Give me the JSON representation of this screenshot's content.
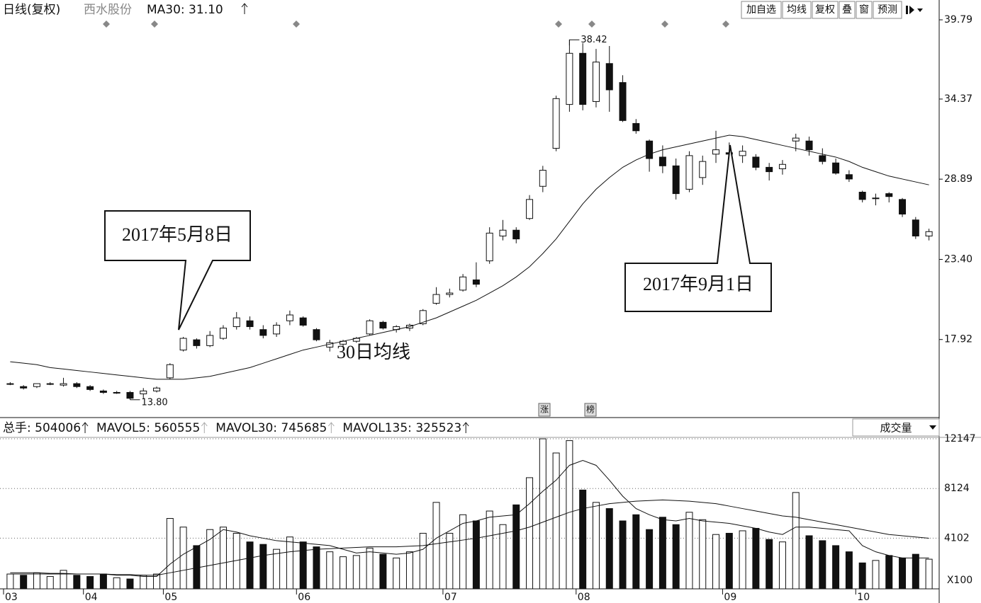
{
  "toolbar": [
    "加自选",
    "均线",
    "复权",
    "叠",
    "窗",
    "预测"
  ],
  "chart_data": [
    {
      "type": "candlestick",
      "title": "日线(复权)",
      "stock": "西水股份",
      "indicator": "MA30: 31.10",
      "categories": [
        "03",
        null,
        null,
        null,
        null,
        null,
        "04",
        null,
        null,
        null,
        null,
        null,
        "05",
        null,
        null,
        null,
        null,
        null,
        null,
        null,
        null,
        null,
        "06",
        null,
        null,
        null,
        null,
        null,
        null,
        null,
        null,
        null,
        null,
        "07",
        null,
        null,
        null,
        null,
        null,
        null,
        null,
        null,
        null,
        "08",
        null,
        null,
        null,
        null,
        null,
        null,
        null,
        null,
        null,
        null,
        "09",
        null,
        null,
        null,
        null,
        null,
        null,
        null,
        null,
        null,
        "10",
        null,
        null,
        null,
        null,
        null
      ],
      "open": [
        14.9,
        14.7,
        14.7,
        14.9,
        14.8,
        14.9,
        14.7,
        14.4,
        14.3,
        14.3,
        14.2,
        14.4,
        15.3,
        17.2,
        17.9,
        17.5,
        18.0,
        18.8,
        19.2,
        18.6,
        18.3,
        19.2,
        19.4,
        18.6,
        17.4,
        17.6,
        17.8,
        18.3,
        19.1,
        18.6,
        18.7,
        19.0,
        20.4,
        21.0,
        21.3,
        22.0,
        23.3,
        25.0,
        25.4,
        26.2,
        28.4,
        31.0,
        34.0,
        37.5,
        34.2,
        36.8,
        35.5,
        32.7,
        31.5,
        30.4,
        29.8,
        28.2,
        29.0,
        30.6,
        30.7,
        30.5,
        30.4,
        29.7,
        29.6,
        31.5,
        31.5,
        30.5,
        30.0,
        29.2,
        28.0,
        27.6,
        27.9,
        27.5,
        26.1,
        25.0
      ],
      "high": [
        15.0,
        14.8,
        14.9,
        15.0,
        15.3,
        15.0,
        14.8,
        14.5,
        14.4,
        14.4,
        14.6,
        14.7,
        16.3,
        18.1,
        18.0,
        18.5,
        18.9,
        19.8,
        19.5,
        18.9,
        19.1,
        19.9,
        19.5,
        18.7,
        17.9,
        17.9,
        18.1,
        19.3,
        19.2,
        18.9,
        19.0,
        20.0,
        21.5,
        21.4,
        22.4,
        23.2,
        25.6,
        26.1,
        25.6,
        27.8,
        29.8,
        34.6,
        38.42,
        38.2,
        37.8,
        38.0,
        36.0,
        33.0,
        31.6,
        31.2,
        30.3,
        30.8,
        30.5,
        32.2,
        31.4,
        31.2,
        30.6,
        30.0,
        30.2,
        32.0,
        31.8,
        31.0,
        30.3,
        29.5,
        28.1,
        27.9,
        28.0,
        27.6,
        26.3,
        25.5
      ],
      "low": [
        14.8,
        14.5,
        14.6,
        14.8,
        14.7,
        14.6,
        14.4,
        14.2,
        14.2,
        13.8,
        13.9,
        14.3,
        15.2,
        17.1,
        17.3,
        17.4,
        17.9,
        18.6,
        18.6,
        18.0,
        18.1,
        18.9,
        18.8,
        17.8,
        17.1,
        17.4,
        17.7,
        18.2,
        18.6,
        18.4,
        18.5,
        18.9,
        20.3,
        20.8,
        21.2,
        21.5,
        23.1,
        24.7,
        24.5,
        26.1,
        28.0,
        30.8,
        33.5,
        33.6,
        33.8,
        33.5,
        32.8,
        32.0,
        29.4,
        29.3,
        27.5,
        28.0,
        28.5,
        30.0,
        30.2,
        30.0,
        29.5,
        28.8,
        29.2,
        30.8,
        30.5,
        29.9,
        29.2,
        28.7,
        27.3,
        27.1,
        27.3,
        26.3,
        24.8,
        24.7
      ],
      "close": [
        14.9,
        14.6,
        14.9,
        14.9,
        14.9,
        14.7,
        14.5,
        14.3,
        14.3,
        13.9,
        14.4,
        14.6,
        16.2,
        18.0,
        17.5,
        18.2,
        18.7,
        19.4,
        18.8,
        18.2,
        18.9,
        19.6,
        18.9,
        17.9,
        17.7,
        17.8,
        18.0,
        19.2,
        18.7,
        18.8,
        18.9,
        19.9,
        21.0,
        21.1,
        22.2,
        21.7,
        25.2,
        25.4,
        24.8,
        27.5,
        29.5,
        34.4,
        37.5,
        34.0,
        36.9,
        35.0,
        32.9,
        32.2,
        30.3,
        29.8,
        27.9,
        30.5,
        30.1,
        30.9,
        30.6,
        30.8,
        29.7,
        29.4,
        29.9,
        31.7,
        30.9,
        30.1,
        29.3,
        28.9,
        27.5,
        27.6,
        27.7,
        26.5,
        25.0,
        25.3
      ],
      "ma30": {
        "name": "30日均线",
        "values": [
          16.4,
          16.3,
          16.2,
          16.0,
          15.9,
          15.8,
          15.7,
          15.6,
          15.5,
          15.4,
          15.3,
          15.2,
          15.2,
          15.2,
          15.3,
          15.4,
          15.6,
          15.8,
          16.0,
          16.3,
          16.6,
          16.9,
          17.2,
          17.4,
          17.6,
          17.8,
          18.0,
          18.2,
          18.4,
          18.6,
          18.8,
          19.1,
          19.4,
          19.8,
          20.2,
          20.6,
          21.1,
          21.6,
          22.2,
          22.9,
          23.8,
          24.8,
          26.0,
          27.2,
          28.2,
          29.0,
          29.7,
          30.2,
          30.6,
          30.9,
          31.1,
          31.3,
          31.5,
          31.7,
          31.9,
          31.8,
          31.6,
          31.4,
          31.2,
          31.0,
          30.8,
          30.6,
          30.4,
          30.1,
          29.7,
          29.4,
          29.1,
          28.9,
          28.7,
          28.5
        ]
      },
      "ylim": [
        12.58,
        40.42
      ],
      "yticks": [
        17.92,
        {
          "value": 23.4,
          "label": "23.40"
        },
        28.89,
        34.37,
        39.79
      ],
      "annotations": {
        "peak": "38.42",
        "low": "13.80",
        "callout1": "2017年5月8日",
        "callout2": "2017年9月1日",
        "marker1": "涨",
        "marker2": "榜"
      }
    },
    {
      "type": "bar",
      "header": [
        "总手: 504006",
        "MAVOL5: 560555",
        "MAVOL30: 745685",
        "MAVOL135: 325523"
      ],
      "selector": "成交量",
      "unit_label": "X100",
      "values": [
        1200,
        1100,
        1300,
        1000,
        1500,
        1100,
        1000,
        1200,
        900,
        800,
        1100,
        1200,
        5700,
        5000,
        3500,
        4800,
        5000,
        4500,
        3800,
        3600,
        3200,
        4200,
        3800,
        3400,
        3000,
        2600,
        2700,
        3300,
        2800,
        2500,
        3000,
        4500,
        7000,
        4500,
        6000,
        5500,
        6300,
        5200,
        6800,
        9000,
        12147,
        11000,
        12000,
        8000,
        7000,
        6500,
        5500,
        6000,
        4800,
        5800,
        5200,
        6200,
        5600,
        4400,
        4500,
        4700,
        4900,
        4000,
        3800,
        7800,
        4300,
        3900,
        3500,
        3000,
        2100,
        2300,
        2700,
        2500,
        2800,
        2400
      ],
      "mavol5": [
        1200,
        1200,
        1200,
        1200,
        1200,
        1200,
        1200,
        1200,
        1100,
        1100,
        1000,
        1000,
        2000,
        2800,
        3400,
        4000,
        4800,
        4600,
        4300,
        4100,
        3900,
        3800,
        3700,
        3600,
        3500,
        3200,
        2900,
        3000,
        2900,
        2800,
        2900,
        3200,
        4100,
        4700,
        5300,
        5500,
        5800,
        5900,
        6000,
        6900,
        7900,
        8800,
        10000,
        10400,
        10000,
        8800,
        7500,
        6500,
        6000,
        5600,
        5500,
        5700,
        5500,
        5400,
        5300,
        5100,
        4900,
        4600,
        4400,
        5000,
        5000,
        4900,
        4800,
        4700,
        3500,
        3000,
        2700,
        2500,
        2500,
        2500
      ],
      "mavol30": [
        1300,
        1300,
        1300,
        1250,
        1250,
        1200,
        1200,
        1200,
        1150,
        1150,
        1100,
        1100,
        1300,
        1500,
        1700,
        1900,
        2100,
        2300,
        2500,
        2700,
        2850,
        3000,
        3100,
        3200,
        3250,
        3300,
        3350,
        3400,
        3400,
        3400,
        3450,
        3500,
        3650,
        3800,
        3950,
        4100,
        4300,
        4500,
        4700,
        5000,
        5400,
        5800,
        6200,
        6500,
        6700,
        6900,
        7000,
        7100,
        7150,
        7200,
        7150,
        7100,
        7000,
        6900,
        6700,
        6500,
        6300,
        6100,
        5900,
        5800,
        5600,
        5400,
        5200,
        5000,
        4800,
        4600,
        4400,
        4300,
        4200,
        4100
      ],
      "ylim": [
        0,
        12147
      ],
      "yticks": [
        4102,
        8124,
        12147
      ]
    }
  ]
}
